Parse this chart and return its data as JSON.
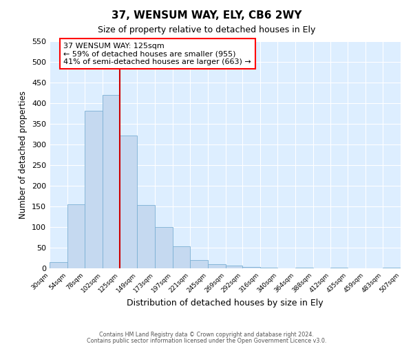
{
  "title": "37, WENSUM WAY, ELY, CB6 2WY",
  "subtitle": "Size of property relative to detached houses in Ely",
  "xlabel": "Distribution of detached houses by size in Ely",
  "ylabel": "Number of detached properties",
  "bin_edges": [
    30,
    54,
    78,
    102,
    125,
    149,
    173,
    197,
    221,
    245,
    269,
    292,
    316,
    340,
    364,
    388,
    412,
    435,
    459,
    483,
    507
  ],
  "bar_heights": [
    15,
    155,
    382,
    420,
    322,
    153,
    100,
    54,
    20,
    10,
    7,
    3,
    2,
    0,
    2,
    0,
    2,
    0,
    0,
    2
  ],
  "bar_color": "#c5d9f0",
  "bar_edge_color": "#7aafd4",
  "vline_x": 125,
  "vline_color": "#cc0000",
  "ylim": [
    0,
    550
  ],
  "yticks": [
    0,
    50,
    100,
    150,
    200,
    250,
    300,
    350,
    400,
    450,
    500,
    550
  ],
  "annotation_box_text_line1": "37 WENSUM WAY: 125sqm",
  "annotation_box_text_line2": "← 59% of detached houses are smaller (955)",
  "annotation_box_text_line3": "41% of semi-detached houses are larger (663) →",
  "footer_line1": "Contains HM Land Registry data © Crown copyright and database right 2024.",
  "footer_line2": "Contains public sector information licensed under the Open Government Licence v3.0.",
  "fig_bg_color": "#ffffff",
  "plot_bg_color": "#ddeeff"
}
